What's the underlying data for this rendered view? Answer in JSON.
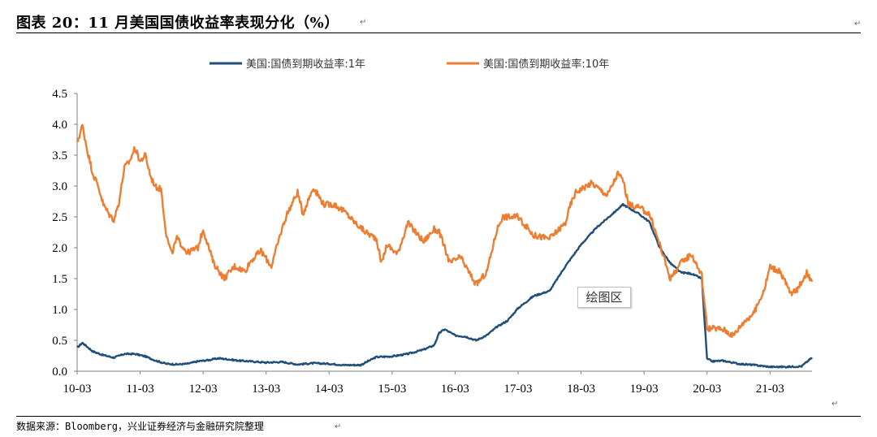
{
  "header": {
    "title": "图表 20：11 月美国国债收益率表现分化（%）",
    "para_mark": "↵"
  },
  "footer": {
    "source": "数据来源：Bloomberg，兴业证券经济与金融研究院整理"
  },
  "overlay": {
    "plot_area_label": "绘图区"
  },
  "colors": {
    "series_1y": "#1f4e79",
    "series_10y": "#ed7d31",
    "axis": "#808080"
  },
  "chart_data": {
    "type": "line",
    "title": "",
    "xlabel": "",
    "ylabel": "",
    "ylim": [
      0.0,
      4.5
    ],
    "yticks": [
      "0.0",
      "0.5",
      "1.0",
      "1.5",
      "2.0",
      "2.5",
      "3.0",
      "3.5",
      "4.0",
      "4.5"
    ],
    "xticks": [
      "10-03",
      "11-03",
      "12-03",
      "13-03",
      "14-03",
      "15-03",
      "16-03",
      "17-03",
      "18-03",
      "19-03",
      "20-03",
      "21-03"
    ],
    "x_start": "2010-03",
    "x_end": "2021-11",
    "legend_position": "top",
    "grid": false,
    "series": [
      {
        "name": "美国:国债到期收益率:1年",
        "color": "#1f4e79",
        "points": [
          [
            "2010-03",
            0.38
          ],
          [
            "2010-04",
            0.46
          ],
          [
            "2010-06",
            0.32
          ],
          [
            "2010-08",
            0.26
          ],
          [
            "2010-10",
            0.22
          ],
          [
            "2010-12",
            0.28
          ],
          [
            "2011-02",
            0.28
          ],
          [
            "2011-04",
            0.24
          ],
          [
            "2011-06",
            0.17
          ],
          [
            "2011-08",
            0.12
          ],
          [
            "2011-10",
            0.11
          ],
          [
            "2011-12",
            0.12
          ],
          [
            "2012-02",
            0.16
          ],
          [
            "2012-04",
            0.18
          ],
          [
            "2012-06",
            0.21
          ],
          [
            "2012-08",
            0.19
          ],
          [
            "2012-10",
            0.17
          ],
          [
            "2012-12",
            0.16
          ],
          [
            "2013-03",
            0.14
          ],
          [
            "2013-06",
            0.15
          ],
          [
            "2013-09",
            0.11
          ],
          [
            "2013-12",
            0.13
          ],
          [
            "2014-03",
            0.12
          ],
          [
            "2014-06",
            0.1
          ],
          [
            "2014-09",
            0.1
          ],
          [
            "2014-12",
            0.23
          ],
          [
            "2015-03",
            0.24
          ],
          [
            "2015-06",
            0.28
          ],
          [
            "2015-09",
            0.35
          ],
          [
            "2015-11",
            0.42
          ],
          [
            "2015-12",
            0.62
          ],
          [
            "2016-01",
            0.68
          ],
          [
            "2016-03",
            0.58
          ],
          [
            "2016-05",
            0.56
          ],
          [
            "2016-07",
            0.5
          ],
          [
            "2016-09",
            0.58
          ],
          [
            "2016-11",
            0.72
          ],
          [
            "2017-01",
            0.82
          ],
          [
            "2017-03",
            1.02
          ],
          [
            "2017-06",
            1.22
          ],
          [
            "2017-09",
            1.3
          ],
          [
            "2017-12",
            1.7
          ],
          [
            "2018-03",
            2.05
          ],
          [
            "2018-06",
            2.33
          ],
          [
            "2018-09",
            2.55
          ],
          [
            "2018-11",
            2.7
          ],
          [
            "2018-12",
            2.65
          ],
          [
            "2019-02",
            2.55
          ],
          [
            "2019-04",
            2.42
          ],
          [
            "2019-06",
            2.0
          ],
          [
            "2019-08",
            1.75
          ],
          [
            "2019-10",
            1.6
          ],
          [
            "2019-12",
            1.58
          ],
          [
            "2020-02",
            1.5
          ],
          [
            "2020-03",
            0.2
          ],
          [
            "2020-04",
            0.16
          ],
          [
            "2020-06",
            0.17
          ],
          [
            "2020-09",
            0.12
          ],
          [
            "2020-12",
            0.1
          ],
          [
            "2021-03",
            0.07
          ],
          [
            "2021-06",
            0.07
          ],
          [
            "2021-09",
            0.08
          ],
          [
            "2021-11",
            0.22
          ]
        ]
      },
      {
        "name": "美国:国债到期收益率:10年",
        "color": "#ed7d31",
        "points": [
          [
            "2010-03",
            3.7
          ],
          [
            "2010-04",
            3.98
          ],
          [
            "2010-05",
            3.55
          ],
          [
            "2010-06",
            3.2
          ],
          [
            "2010-07",
            3.0
          ],
          [
            "2010-08",
            2.7
          ],
          [
            "2010-09",
            2.55
          ],
          [
            "2010-10",
            2.45
          ],
          [
            "2010-11",
            2.75
          ],
          [
            "2010-12",
            3.3
          ],
          [
            "2011-01",
            3.4
          ],
          [
            "2011-02",
            3.62
          ],
          [
            "2011-03",
            3.4
          ],
          [
            "2011-04",
            3.5
          ],
          [
            "2011-05",
            3.15
          ],
          [
            "2011-06",
            2.98
          ],
          [
            "2011-07",
            2.95
          ],
          [
            "2011-08",
            2.2
          ],
          [
            "2011-09",
            1.9
          ],
          [
            "2011-10",
            2.15
          ],
          [
            "2011-12",
            1.92
          ],
          [
            "2012-02",
            2.0
          ],
          [
            "2012-03",
            2.3
          ],
          [
            "2012-05",
            1.75
          ],
          [
            "2012-07",
            1.5
          ],
          [
            "2012-09",
            1.7
          ],
          [
            "2012-11",
            1.62
          ],
          [
            "2012-12",
            1.78
          ],
          [
            "2013-02",
            1.95
          ],
          [
            "2013-04",
            1.7
          ],
          [
            "2013-06",
            2.3
          ],
          [
            "2013-07",
            2.55
          ],
          [
            "2013-09",
            2.9
          ],
          [
            "2013-10",
            2.55
          ],
          [
            "2013-12",
            2.98
          ],
          [
            "2014-02",
            2.7
          ],
          [
            "2014-04",
            2.7
          ],
          [
            "2014-06",
            2.58
          ],
          [
            "2014-08",
            2.4
          ],
          [
            "2014-10",
            2.25
          ],
          [
            "2014-12",
            2.15
          ],
          [
            "2015-01",
            1.75
          ],
          [
            "2015-02",
            2.05
          ],
          [
            "2015-04",
            1.9
          ],
          [
            "2015-06",
            2.4
          ],
          [
            "2015-07",
            2.3
          ],
          [
            "2015-09",
            2.1
          ],
          [
            "2015-11",
            2.3
          ],
          [
            "2015-12",
            2.25
          ],
          [
            "2016-02",
            1.75
          ],
          [
            "2016-04",
            1.85
          ],
          [
            "2016-07",
            1.4
          ],
          [
            "2016-09",
            1.6
          ],
          [
            "2016-11",
            2.3
          ],
          [
            "2016-12",
            2.5
          ],
          [
            "2017-03",
            2.5
          ],
          [
            "2017-06",
            2.2
          ],
          [
            "2017-09",
            2.15
          ],
          [
            "2017-12",
            2.4
          ],
          [
            "2018-01",
            2.7
          ],
          [
            "2018-02",
            2.9
          ],
          [
            "2018-05",
            3.05
          ],
          [
            "2018-08",
            2.85
          ],
          [
            "2018-10",
            3.2
          ],
          [
            "2018-11",
            3.1
          ],
          [
            "2018-12",
            2.7
          ],
          [
            "2019-02",
            2.65
          ],
          [
            "2019-04",
            2.55
          ],
          [
            "2019-06",
            2.05
          ],
          [
            "2019-08",
            1.5
          ],
          [
            "2019-10",
            1.75
          ],
          [
            "2019-12",
            1.9
          ],
          [
            "2020-02",
            1.55
          ],
          [
            "2020-03",
            0.7
          ],
          [
            "2020-06",
            0.68
          ],
          [
            "2020-08",
            0.58
          ],
          [
            "2020-10",
            0.8
          ],
          [
            "2020-12",
            0.95
          ],
          [
            "2021-02",
            1.35
          ],
          [
            "2021-03",
            1.7
          ],
          [
            "2021-05",
            1.6
          ],
          [
            "2021-07",
            1.25
          ],
          [
            "2021-08",
            1.3
          ],
          [
            "2021-10",
            1.6
          ],
          [
            "2021-11",
            1.45
          ]
        ]
      }
    ]
  }
}
